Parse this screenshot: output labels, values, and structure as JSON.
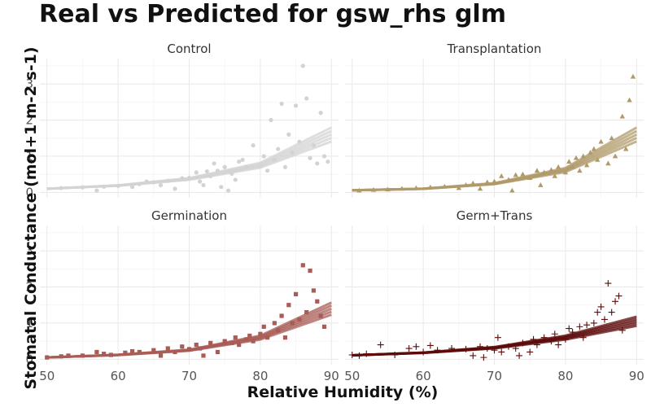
{
  "chart_data": {
    "type": "scatter",
    "title": "Real vs Predicted for gsw_rhs glm",
    "xlabel": "Relative Humidity (%)",
    "ylabel": "Stomatal Conductance (mol+1 m-2 s-1)",
    "xlim": [
      49,
      91
    ],
    "ylim": [
      -0.15,
      3.7
    ],
    "xticks": [
      50,
      60,
      70,
      80,
      90
    ],
    "yticks": [
      0,
      1,
      2,
      3
    ],
    "grid": true,
    "legend": "none",
    "panels": [
      {
        "name": "Control",
        "color": "#d3d3d3",
        "marker": "circle",
        "fit": [
          [
            50,
            0.1
          ],
          [
            60,
            0.19
          ],
          [
            70,
            0.37
          ],
          [
            80,
            0.75
          ],
          [
            90,
            1.6
          ]
        ],
        "points": [
          [
            52,
            0.12
          ],
          [
            55,
            0.14
          ],
          [
            57,
            0.05
          ],
          [
            58,
            0.16
          ],
          [
            60,
            0.18
          ],
          [
            62,
            0.15
          ],
          [
            63,
            0.23
          ],
          [
            64,
            0.3
          ],
          [
            65,
            0.28
          ],
          [
            66,
            0.2
          ],
          [
            67,
            0.32
          ],
          [
            68,
            0.1
          ],
          [
            69,
            0.39
          ],
          [
            70,
            0.4
          ],
          [
            71,
            0.55
          ],
          [
            71.5,
            0.3
          ],
          [
            72,
            0.2
          ],
          [
            72.5,
            0.58
          ],
          [
            73,
            0.45
          ],
          [
            73.5,
            0.8
          ],
          [
            74,
            0.6
          ],
          [
            74.5,
            0.15
          ],
          [
            75,
            0.7
          ],
          [
            75.5,
            0.05
          ],
          [
            76,
            0.52
          ],
          [
            76.5,
            0.35
          ],
          [
            77,
            0.85
          ],
          [
            77.5,
            0.9
          ],
          [
            78,
            0.7
          ],
          [
            79,
            1.3
          ],
          [
            80,
            0.75
          ],
          [
            80.5,
            1.0
          ],
          [
            81,
            0.6
          ],
          [
            81.5,
            2.0
          ],
          [
            82,
            0.9
          ],
          [
            82.5,
            1.2
          ],
          [
            83,
            2.45
          ],
          [
            83.5,
            0.7
          ],
          [
            84,
            1.6
          ],
          [
            84.5,
            1.1
          ],
          [
            85,
            2.4
          ],
          [
            85.5,
            1.4
          ],
          [
            86,
            3.5
          ],
          [
            86.5,
            2.6
          ],
          [
            87,
            0.95
          ],
          [
            87.5,
            1.3
          ],
          [
            88,
            0.8
          ],
          [
            88.5,
            2.2
          ],
          [
            89,
            1.0
          ],
          [
            89.5,
            0.85
          ]
        ]
      },
      {
        "name": "Transplantation",
        "color": "#b09a6a",
        "marker": "triangle",
        "fit": [
          [
            50,
            0.06
          ],
          [
            60,
            0.1
          ],
          [
            70,
            0.24
          ],
          [
            80,
            0.62
          ],
          [
            90,
            1.6
          ]
        ],
        "points": [
          [
            51,
            0.05
          ],
          [
            53,
            0.07
          ],
          [
            55,
            0.08
          ],
          [
            57,
            0.1
          ],
          [
            59,
            0.12
          ],
          [
            61,
            0.14
          ],
          [
            63,
            0.16
          ],
          [
            65,
            0.12
          ],
          [
            66,
            0.2
          ],
          [
            67,
            0.25
          ],
          [
            68,
            0.1
          ],
          [
            69,
            0.28
          ],
          [
            70,
            0.3
          ],
          [
            71,
            0.45
          ],
          [
            72,
            0.35
          ],
          [
            72.5,
            0.05
          ],
          [
            73,
            0.48
          ],
          [
            74,
            0.5
          ],
          [
            75,
            0.4
          ],
          [
            76,
            0.6
          ],
          [
            76.5,
            0.2
          ],
          [
            77,
            0.55
          ],
          [
            78,
            0.62
          ],
          [
            78.5,
            0.45
          ],
          [
            79,
            0.7
          ],
          [
            80,
            0.55
          ],
          [
            80.5,
            0.85
          ],
          [
            81,
            0.7
          ],
          [
            81.5,
            0.95
          ],
          [
            82,
            0.6
          ],
          [
            82.5,
            1.0
          ],
          [
            83,
            0.75
          ],
          [
            83.5,
            1.1
          ],
          [
            84,
            1.2
          ],
          [
            84.5,
            0.9
          ],
          [
            85,
            1.4
          ],
          [
            86,
            0.8
          ],
          [
            86.5,
            1.5
          ],
          [
            87,
            1.0
          ],
          [
            88,
            2.1
          ],
          [
            88.5,
            1.2
          ],
          [
            89,
            2.55
          ],
          [
            89.5,
            3.2
          ]
        ]
      },
      {
        "name": "Germination",
        "color": "#a85c55",
        "marker": "square",
        "fit": [
          [
            50,
            0.05
          ],
          [
            60,
            0.12
          ],
          [
            70,
            0.25
          ],
          [
            80,
            0.6
          ],
          [
            90,
            1.4
          ]
        ],
        "points": [
          [
            50,
            0.05
          ],
          [
            52,
            0.08
          ],
          [
            53,
            0.1
          ],
          [
            55,
            0.1
          ],
          [
            57,
            0.2
          ],
          [
            58,
            0.15
          ],
          [
            59,
            0.12
          ],
          [
            61,
            0.18
          ],
          [
            62,
            0.22
          ],
          [
            63,
            0.2
          ],
          [
            65,
            0.25
          ],
          [
            66,
            0.1
          ],
          [
            67,
            0.3
          ],
          [
            68,
            0.2
          ],
          [
            69,
            0.35
          ],
          [
            70,
            0.28
          ],
          [
            71,
            0.4
          ],
          [
            71.5,
            0.3
          ],
          [
            72,
            0.1
          ],
          [
            73,
            0.45
          ],
          [
            74,
            0.2
          ],
          [
            75,
            0.5
          ],
          [
            76,
            0.45
          ],
          [
            76.5,
            0.6
          ],
          [
            77,
            0.4
          ],
          [
            78,
            0.55
          ],
          [
            78.5,
            0.65
          ],
          [
            79,
            0.5
          ],
          [
            80,
            0.7
          ],
          [
            80.5,
            0.9
          ],
          [
            81,
            0.6
          ],
          [
            82,
            1.0
          ],
          [
            82.5,
            0.8
          ],
          [
            83,
            1.2
          ],
          [
            83.5,
            0.6
          ],
          [
            84,
            1.5
          ],
          [
            84.5,
            1.0
          ],
          [
            85,
            1.8
          ],
          [
            85.5,
            1.1
          ],
          [
            86,
            2.6
          ],
          [
            86.5,
            1.3
          ],
          [
            87,
            2.45
          ],
          [
            87.5,
            1.9
          ],
          [
            88,
            1.6
          ],
          [
            88.5,
            1.2
          ],
          [
            89,
            0.9
          ]
        ]
      },
      {
        "name": "Germ+Trans",
        "color": "#5c0a0a",
        "marker": "plus",
        "fit": [
          [
            50,
            0.11
          ],
          [
            60,
            0.18
          ],
          [
            70,
            0.32
          ],
          [
            80,
            0.6
          ],
          [
            90,
            1.05
          ]
        ],
        "points": [
          [
            50,
            0.12
          ],
          [
            51,
            0.1
          ],
          [
            52,
            0.15
          ],
          [
            54,
            0.4
          ],
          [
            56,
            0.12
          ],
          [
            58,
            0.3
          ],
          [
            59,
            0.35
          ],
          [
            60,
            0.2
          ],
          [
            61,
            0.38
          ],
          [
            62,
            0.25
          ],
          [
            64,
            0.3
          ],
          [
            66,
            0.28
          ],
          [
            67,
            0.1
          ],
          [
            68,
            0.35
          ],
          [
            68.5,
            0.05
          ],
          [
            69,
            0.3
          ],
          [
            70,
            0.25
          ],
          [
            70.5,
            0.6
          ],
          [
            71,
            0.2
          ],
          [
            72,
            0.35
          ],
          [
            73,
            0.3
          ],
          [
            73.5,
            0.1
          ],
          [
            74,
            0.45
          ],
          [
            75,
            0.2
          ],
          [
            75.5,
            0.55
          ],
          [
            76,
            0.4
          ],
          [
            77,
            0.6
          ],
          [
            78,
            0.5
          ],
          [
            78.5,
            0.7
          ],
          [
            79,
            0.4
          ],
          [
            80,
            0.55
          ],
          [
            80.5,
            0.85
          ],
          [
            81,
            0.75
          ],
          [
            82,
            0.9
          ],
          [
            82.5,
            0.6
          ],
          [
            83,
            0.95
          ],
          [
            84,
            1.0
          ],
          [
            84.5,
            1.3
          ],
          [
            85,
            1.45
          ],
          [
            85.5,
            1.1
          ],
          [
            86,
            2.1
          ],
          [
            86.5,
            1.3
          ],
          [
            87,
            1.6
          ],
          [
            87.5,
            1.75
          ],
          [
            88,
            0.8
          ]
        ]
      }
    ]
  }
}
